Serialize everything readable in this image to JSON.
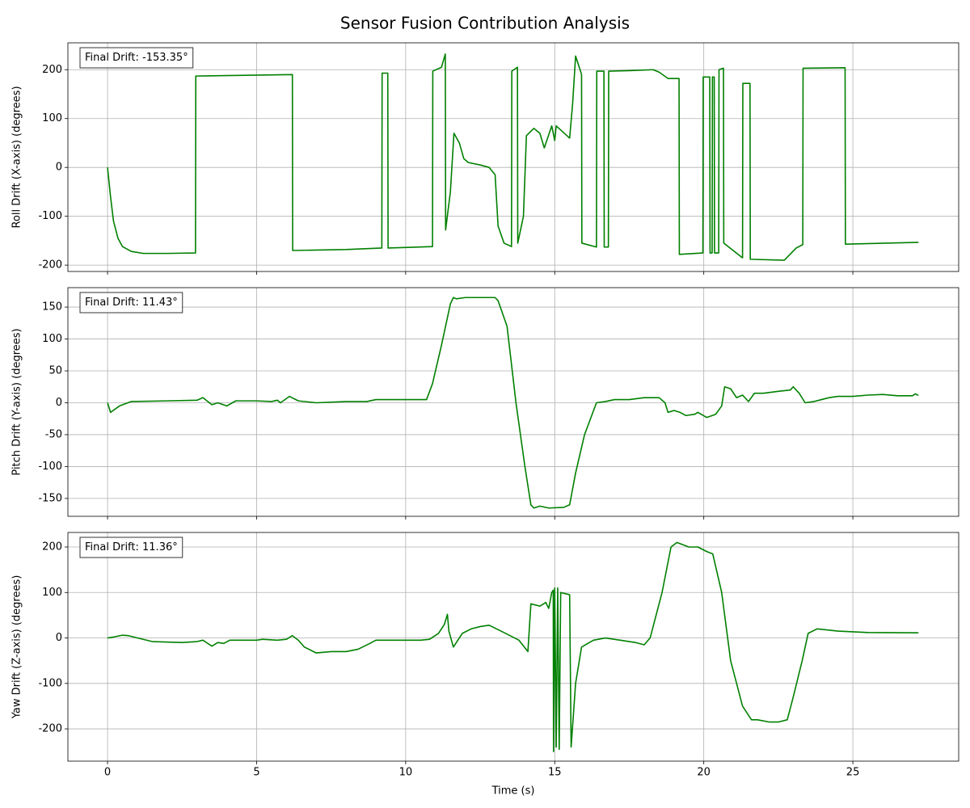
{
  "title": "Sensor Fusion Contribution Analysis",
  "chart_data": [
    {
      "type": "line",
      "ylabel": "Roll Drift (X-axis) (degrees)",
      "annotation": "Final Drift: -153.35°",
      "color": "#008000",
      "grid": true,
      "xlim": [
        -1.33,
        28.55
      ],
      "xticks": [
        0,
        5,
        10,
        15,
        20,
        25
      ],
      "ylim": [
        -213,
        255
      ],
      "yticks": [
        -200,
        -100,
        0,
        100,
        200
      ],
      "x": [
        0,
        0.1,
        0.2,
        0.35,
        0.5,
        0.8,
        1.2,
        2,
        2.95,
        2.96,
        6.2,
        6.21,
        8,
        9.2,
        9.21,
        9.4,
        9.41,
        10.9,
        10.91,
        11.2,
        11.33,
        11.34,
        11.5,
        11.62,
        11.8,
        11.95,
        12.1,
        12.5,
        12.8,
        13.0,
        13.1,
        13.3,
        13.55,
        13.56,
        13.75,
        13.76,
        13.95,
        14.05,
        14.3,
        14.5,
        14.65,
        14.9,
        15.0,
        15.05,
        15.5,
        15.6,
        15.7,
        15.85,
        15.9,
        15.91,
        16.4,
        16.41,
        16.65,
        16.66,
        16.8,
        16.81,
        17.5,
        18.3,
        18.5,
        18.8,
        19.17,
        19.18,
        19.97,
        19.98,
        20.2,
        20.21,
        20.28,
        20.29,
        20.35,
        20.36,
        20.5,
        20.51,
        20.66,
        20.67,
        21.3,
        21.31,
        21.55,
        21.56,
        22.7,
        23.1,
        23.32,
        23.33,
        24.74,
        24.75,
        27.2
      ],
      "values": [
        0,
        -60,
        -110,
        -145,
        -162,
        -172,
        -176,
        -176,
        -175,
        187,
        190,
        -170,
        -168,
        -165,
        193,
        193,
        -165,
        -162,
        197,
        205,
        232,
        -128,
        -50,
        70,
        50,
        18,
        10,
        5,
        0,
        -15,
        -120,
        -155,
        -162,
        197,
        205,
        -155,
        -100,
        65,
        80,
        70,
        40,
        85,
        55,
        85,
        60,
        130,
        228,
        200,
        190,
        -155,
        -163,
        197,
        197,
        -163,
        -163,
        197,
        198,
        200,
        195,
        182,
        182,
        -178,
        -175,
        185,
        185,
        -175,
        -175,
        185,
        185,
        -175,
        -175,
        200,
        203,
        -155,
        -185,
        172,
        172,
        -188,
        -190,
        -165,
        -158,
        203,
        204,
        -157,
        -153.35
      ]
    },
    {
      "type": "line",
      "ylabel": "Pitch Drift (Y-axis) (degrees)",
      "annotation": "Final Drift: 11.43°",
      "color": "#008000",
      "grid": true,
      "xlim": [
        -1.33,
        28.55
      ],
      "xticks": [
        0,
        5,
        10,
        15,
        20,
        25
      ],
      "ylim": [
        -178,
        180.5
      ],
      "yticks": [
        -150,
        -100,
        -50,
        0,
        50,
        100,
        150
      ],
      "x": [
        0,
        0.1,
        0.4,
        0.8,
        2,
        3,
        3.2,
        3.5,
        3.7,
        4.0,
        4.3,
        5,
        5.5,
        5.7,
        5.8,
        6.1,
        6.4,
        7,
        8,
        8.7,
        9,
        10,
        10.7,
        10.9,
        11.2,
        11.5,
        11.6,
        11.7,
        12,
        13,
        13.1,
        13.4,
        13.7,
        14,
        14.2,
        14.3,
        14.5,
        14.8,
        15.3,
        15.5,
        15.7,
        16,
        16.2,
        16.4,
        16.7,
        17,
        17.5,
        18,
        18.5,
        18.7,
        18.8,
        19,
        19.2,
        19.4,
        19.7,
        19.8,
        20.1,
        20.4,
        20.6,
        20.7,
        20.9,
        21.1,
        21.3,
        21.5,
        21.7,
        22,
        22.5,
        22.9,
        23,
        23.2,
        23.4,
        23.7,
        24.2,
        24.5,
        25,
        25.5,
        26,
        26.5,
        27,
        27.1,
        27.2
      ],
      "values": [
        0,
        -15,
        -5,
        2,
        3,
        4,
        8,
        -3,
        0,
        -5,
        3,
        3,
        2,
        4,
        0,
        10,
        3,
        0,
        2,
        2,
        5,
        5,
        5,
        30,
        90,
        155,
        165,
        163,
        165,
        165,
        160,
        120,
        0,
        -100,
        -160,
        -165,
        -162,
        -165,
        -164,
        -160,
        -110,
        -50,
        -25,
        0,
        2,
        5,
        5,
        8,
        8,
        0,
        -15,
        -12,
        -15,
        -20,
        -18,
        -15,
        -23,
        -18,
        -5,
        25,
        22,
        8,
        12,
        2,
        15,
        15,
        18,
        20,
        25,
        15,
        0,
        2,
        8,
        10,
        10,
        12,
        13,
        11,
        11,
        14,
        11.43
      ]
    },
    {
      "type": "line",
      "ylabel": "Yaw Drift (Z-axis) (degrees)",
      "xlabel": "Time (s)",
      "annotation": "Final Drift: 11.36°",
      "color": "#008000",
      "grid": true,
      "xlim": [
        -1.33,
        28.55
      ],
      "xticks": [
        0,
        5,
        10,
        15,
        20,
        25
      ],
      "ylim": [
        -271,
        232
      ],
      "yticks": [
        -200,
        -100,
        0,
        100,
        200
      ],
      "x": [
        0,
        0.2,
        0.5,
        0.7,
        1,
        1.5,
        2.5,
        3,
        3.2,
        3.5,
        3.7,
        3.9,
        4.1,
        5,
        5.2,
        5.7,
        6,
        6.2,
        6.4,
        6.6,
        7,
        7.5,
        8,
        8.4,
        8.8,
        9,
        10.5,
        10.8,
        11.1,
        11.3,
        11.4,
        11.45,
        11.6,
        11.9,
        12.2,
        12.5,
        12.8,
        13.2,
        13.5,
        13.8,
        14.1,
        14.2,
        14.5,
        14.7,
        14.8,
        14.9,
        14.95,
        14.96,
        15.0,
        15.05,
        15.1,
        15.15,
        15.2,
        15.5,
        15.55,
        15.7,
        15.9,
        16.3,
        16.7,
        17.2,
        17.7,
        18.0,
        18.2,
        18.6,
        18.9,
        19.1,
        19.5,
        19.8,
        20.1,
        20.3,
        20.6,
        20.9,
        21.3,
        21.6,
        21.8,
        22.2,
        22.5,
        22.8,
        23,
        23.3,
        23.5,
        23.8,
        24.5,
        25.5,
        27.2
      ],
      "values": [
        0,
        2,
        6,
        5,
        0,
        -8,
        -10,
        -8,
        -5,
        -18,
        -10,
        -12,
        -5,
        -5,
        -3,
        -5,
        -3,
        5,
        -5,
        -20,
        -33,
        -30,
        -30,
        -25,
        -12,
        -5,
        -5,
        -3,
        10,
        30,
        52,
        15,
        -20,
        10,
        20,
        25,
        28,
        15,
        5,
        -5,
        -30,
        75,
        70,
        78,
        65,
        100,
        105,
        -250,
        110,
        -240,
        110,
        -245,
        100,
        95,
        -240,
        -100,
        -20,
        -5,
        0,
        -5,
        -10,
        -15,
        0,
        100,
        200,
        210,
        200,
        200,
        190,
        185,
        100,
        -50,
        -150,
        -180,
        -180,
        -185,
        -185,
        -180,
        -130,
        -50,
        10,
        20,
        15,
        12,
        11.36
      ]
    }
  ]
}
